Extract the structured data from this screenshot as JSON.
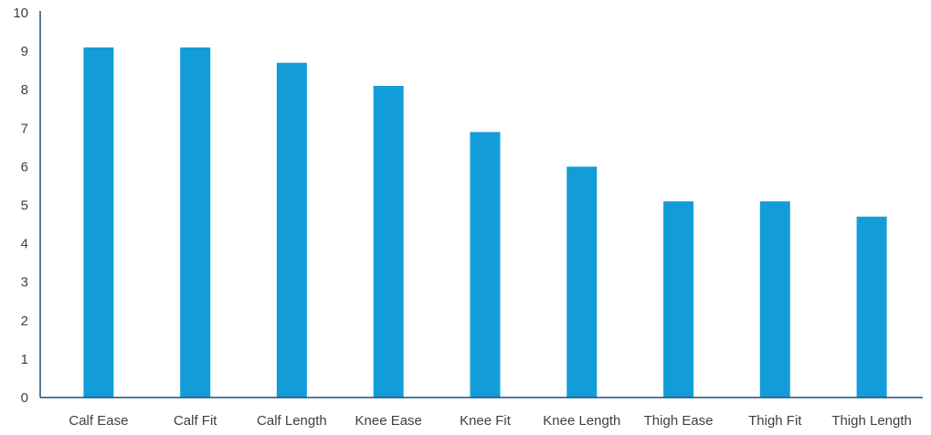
{
  "chart_data": {
    "type": "bar",
    "categories": [
      "Calf Ease",
      "Calf Fit",
      "Calf Length",
      "Knee Ease",
      "Knee Fit",
      "Knee Length",
      "Thigh Ease",
      "Thigh Fit",
      "Thigh Length"
    ],
    "values": [
      9.1,
      9.1,
      8.7,
      8.1,
      6.9,
      6.0,
      5.1,
      5.1,
      4.7
    ],
    "ylim": [
      0,
      10
    ],
    "yticks": [
      0,
      1,
      2,
      3,
      4,
      5,
      6,
      7,
      8,
      9,
      10
    ],
    "grid": false,
    "legend": "none",
    "colors": {
      "bar": "#129dd8",
      "axis": "#1f4e79",
      "text": "#404040"
    }
  }
}
